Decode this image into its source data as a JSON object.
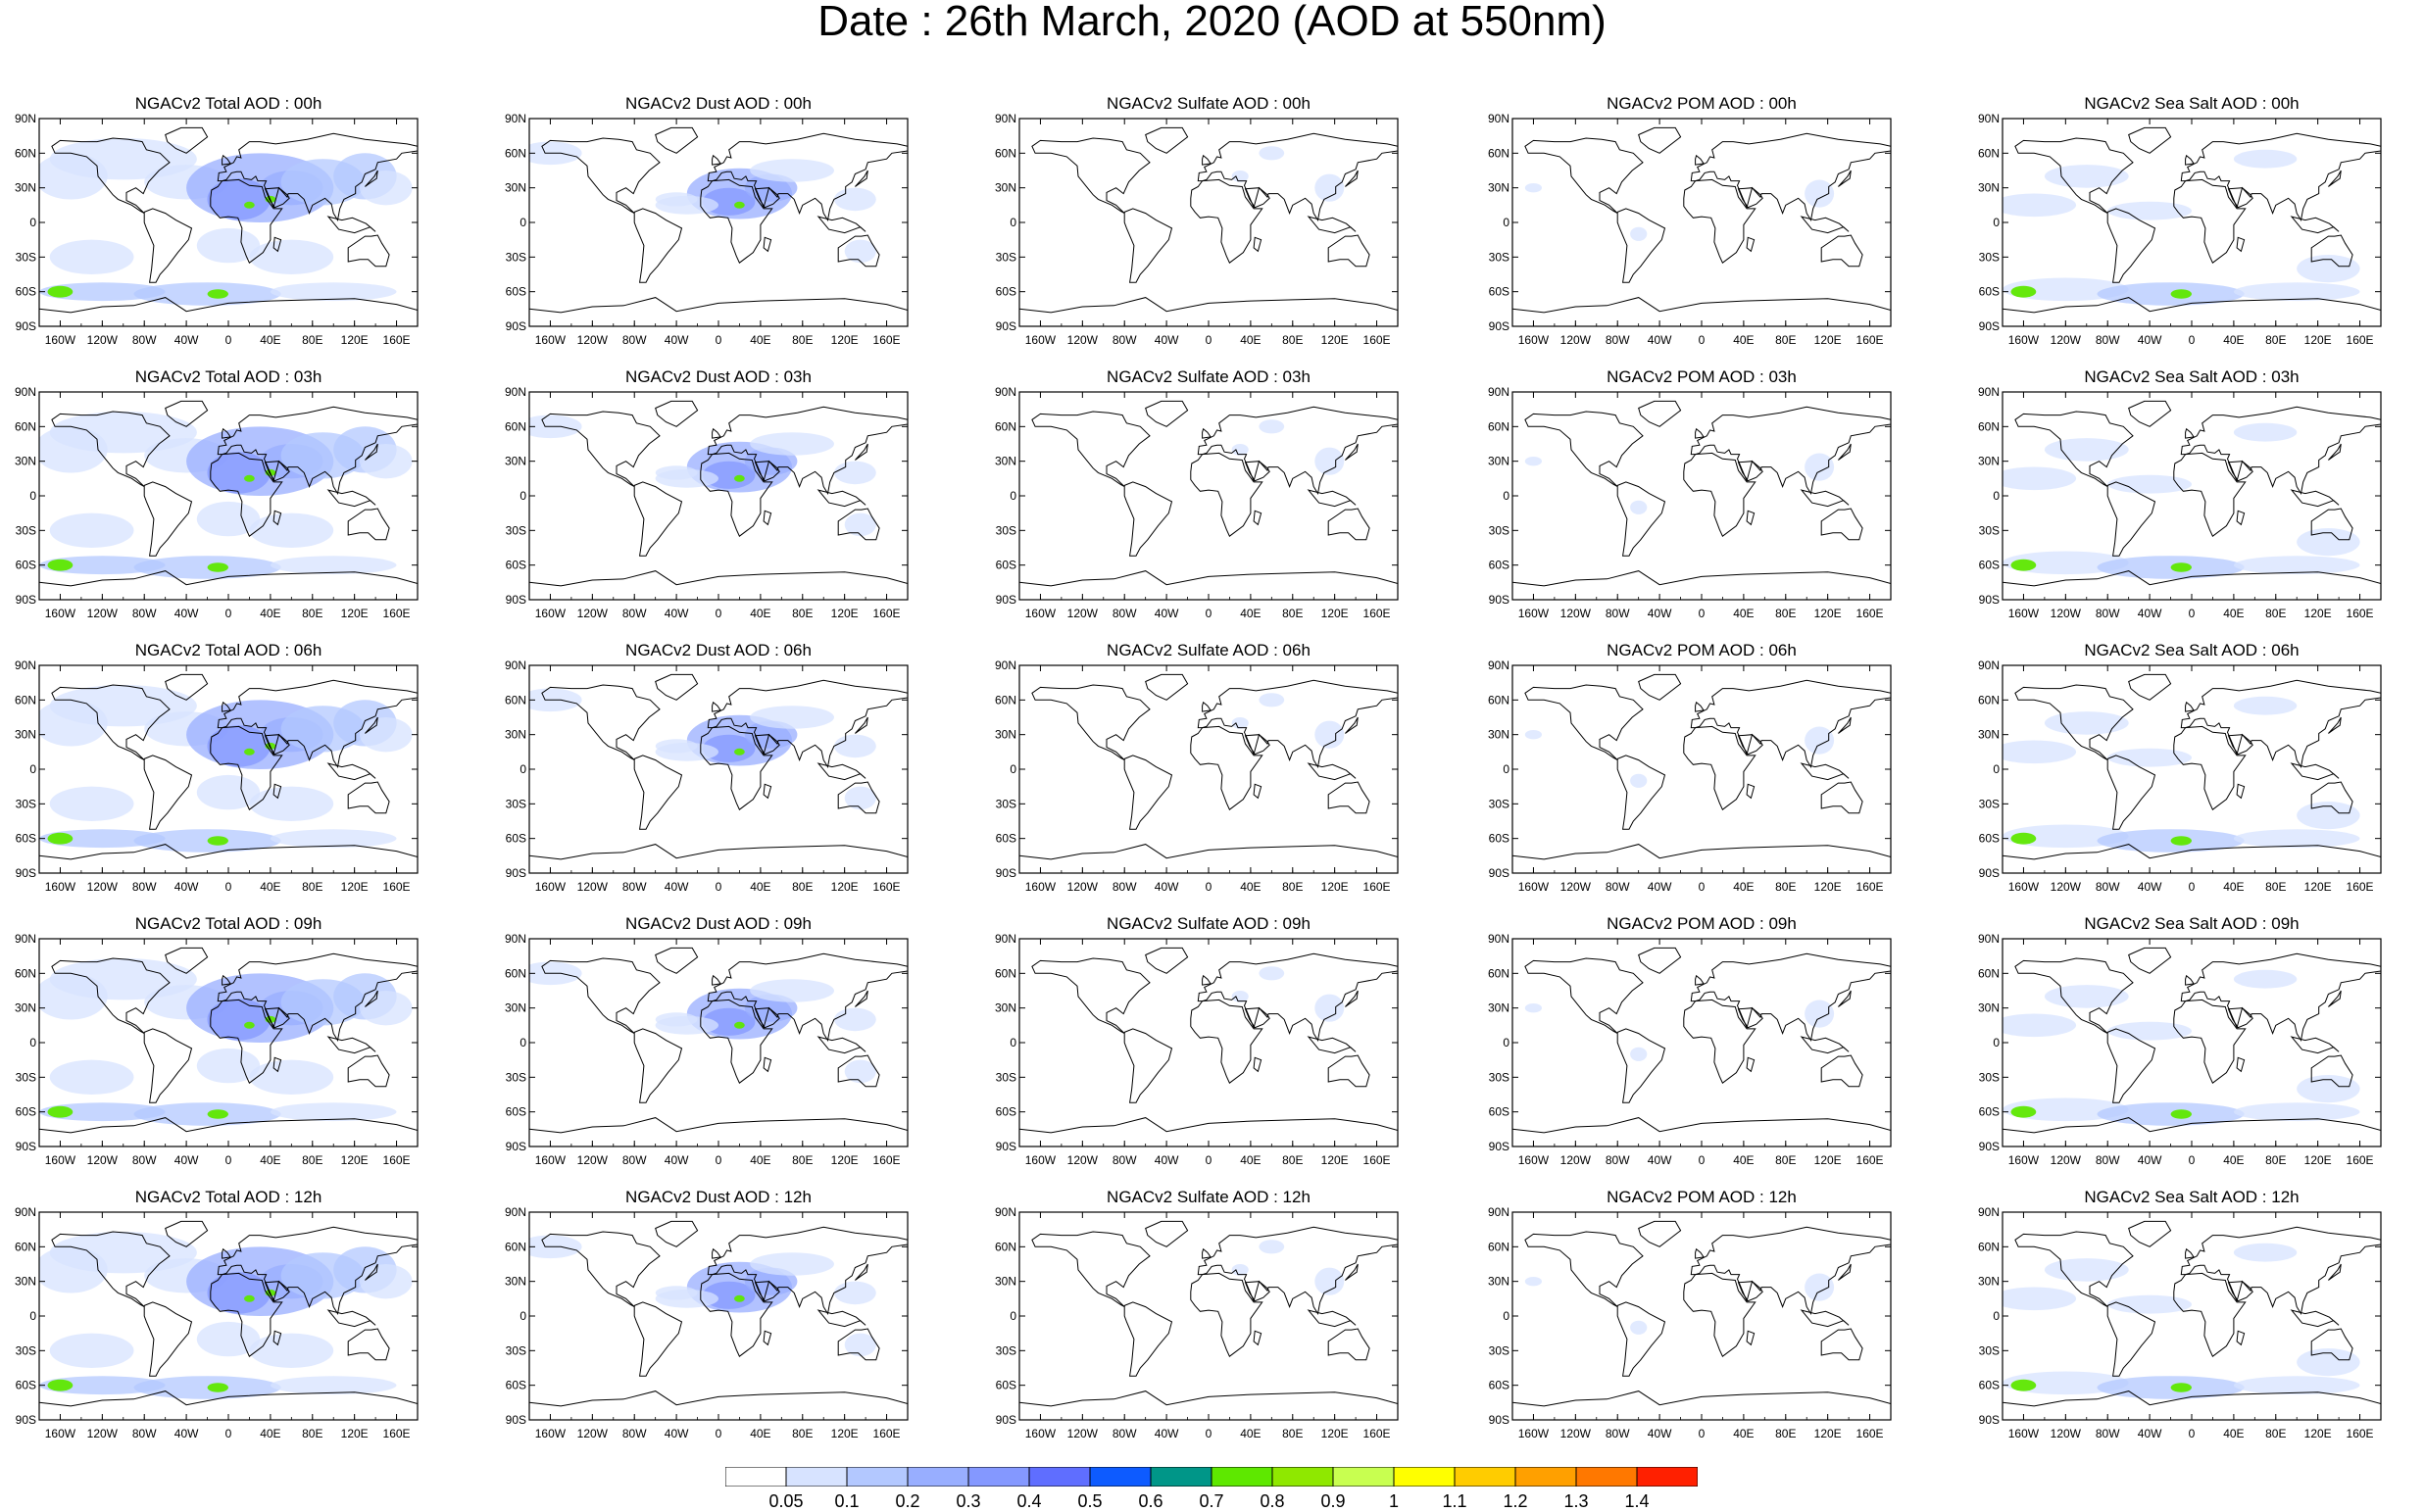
{
  "title": "Date : 26th March, 2020 (AOD at 550nm)",
  "panel_titles": [
    [
      "NGACv2 Total AOD : 00h",
      "NGACv2 Dust AOD : 00h",
      "NGACv2 Sulfate AOD : 00h",
      "NGACv2 POM AOD : 00h",
      "NGACv2 Sea Salt AOD : 00h"
    ],
    [
      "NGACv2 Total AOD : 03h",
      "NGACv2 Dust AOD : 03h",
      "NGACv2 Sulfate AOD : 03h",
      "NGACv2 POM AOD : 03h",
      "NGACv2 Sea Salt AOD : 03h"
    ],
    [
      "NGACv2 Total AOD : 06h",
      "NGACv2 Dust AOD : 06h",
      "NGACv2 Sulfate AOD : 06h",
      "NGACv2 POM AOD : 06h",
      "NGACv2 Sea Salt AOD : 06h"
    ],
    [
      "NGACv2 Total AOD : 09h",
      "NGACv2 Dust AOD : 09h",
      "NGACv2 Sulfate AOD : 09h",
      "NGACv2 POM AOD : 09h",
      "NGACv2 Sea Salt  AOD : 09h"
    ],
    [
      "NGACv2 Total AOD : 12h",
      "NGACv2 Dust AOD : 12h",
      "NGACv2 Sulfate AOD : 12h",
      "NGACv2 POM  AOD : 12h",
      "NGACv2 Sea Salt AOD : 12h"
    ]
  ],
  "species": [
    "total",
    "dust",
    "sulfate",
    "pom",
    "seasalt"
  ],
  "lat_labels": [
    "90N",
    "60N",
    "30N",
    "0",
    "30S",
    "60S",
    "90S"
  ],
  "lat_values": [
    90,
    60,
    30,
    0,
    -30,
    -60,
    -90
  ],
  "lon_labels": [
    "160W",
    "120W",
    "80W",
    "40W",
    "0",
    "40E",
    "80E",
    "120E",
    "160E"
  ],
  "lon_values": [
    -160,
    -120,
    -80,
    -40,
    0,
    40,
    80,
    120,
    160
  ],
  "colorbar": {
    "labels": [
      "0.05",
      "0.1",
      "0.2",
      "0.3",
      "0.4",
      "0.5",
      "0.6",
      "0.7",
      "0.8",
      "0.9",
      "1",
      "1.1",
      "1.2",
      "1.3",
      "1.4"
    ],
    "colors": [
      "#ffffff",
      "#d7e3ff",
      "#b3c8ff",
      "#98aeff",
      "#8498ff",
      "#5f6eff",
      "#0d5bff",
      "#009688",
      "#5ee800",
      "#8fe800",
      "#c8ff50",
      "#ffff00",
      "#ffcc00",
      "#ffa000",
      "#ff7800",
      "#ff2000"
    ]
  }
}
